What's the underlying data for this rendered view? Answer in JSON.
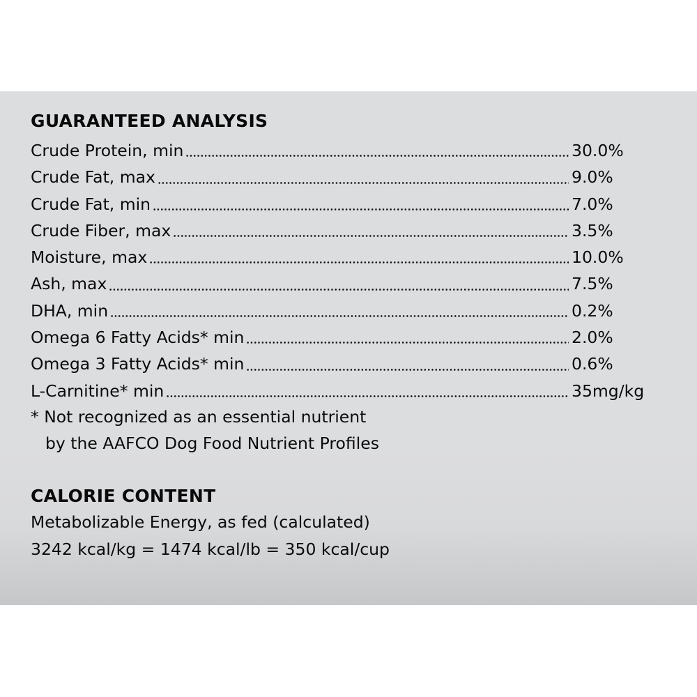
{
  "guaranteed_analysis": {
    "title": "GUARANTEED ANALYSIS",
    "rows": [
      {
        "label": "Crude Protein, min",
        "value": "30.0%",
        "leader_start": 272,
        "leader_end": 770
      },
      {
        "label": "Crude Fat, max",
        "value": "9.0%",
        "leader_start": 206,
        "leader_end": 772
      },
      {
        "label": "Crude Fat, min",
        "value": "7.0%",
        "leader_start": 200,
        "leader_end": 774
      },
      {
        "label": "Crude Fiber, max",
        "value": "3.5%",
        "leader_start": 232,
        "leader_end": 774
      },
      {
        "label": "Moisture, max",
        "value": "10.0%",
        "leader_start": 194,
        "leader_end": 774
      },
      {
        "label": "Ash, max",
        "value": "7.5%",
        "leader_start": 127,
        "leader_end": 774
      },
      {
        "label": "DHA, min",
        "value": "0.2%",
        "leader_start": 128,
        "leader_end": 770
      },
      {
        "label": "Omega 6 Fatty Acids* min",
        "value": "2.0%",
        "leader_start": 362,
        "leader_end": 772
      },
      {
        "label": "Omega 3 Fatty Acids* min",
        "value": "0.6%",
        "leader_start": 362,
        "leader_end": 772
      },
      {
        "label": "L-Carnitine* min",
        "value": "35mg/kg",
        "leader_start": 224,
        "leader_end": 772
      }
    ],
    "footnote_line1": "* Not recognized as an essential nutrient",
    "footnote_line2": "by the AAFCO Dog Food Nutrient Profiles"
  },
  "calorie_content": {
    "title": "CALORIE CONTENT",
    "line1": "Metabolizable Energy, as fed (calculated)",
    "line2": "3242 kcal/kg = 1474 kcal/lb = 350 kcal/cup"
  }
}
